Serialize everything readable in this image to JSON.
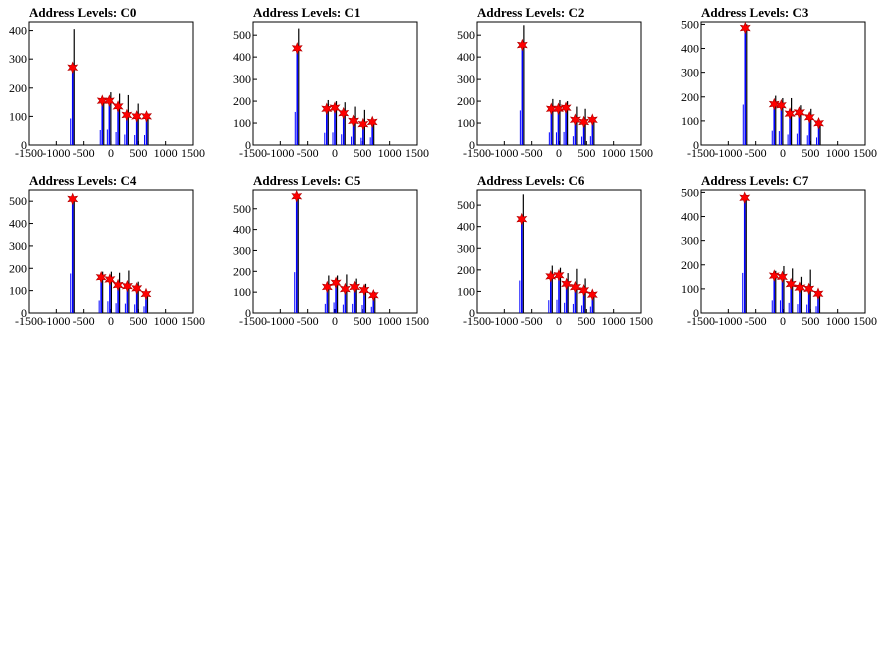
{
  "colors": {
    "histogram": "#0000ff",
    "peak_marker": "#ff0000",
    "frame": "#000000",
    "spike": "#000000"
  },
  "chart_data": [
    {
      "type": "histogram",
      "title": "Address Levels: C0",
      "xlim": [
        -1500,
        1500
      ],
      "ylim": [
        0,
        430
      ],
      "xticks": [
        "-1500",
        "-1000",
        "-500",
        "0",
        "500",
        "1000",
        "1500"
      ],
      "yticks": [
        "0",
        "100",
        "200",
        "300",
        "400"
      ],
      "bins": [
        {
          "x": -700,
          "y": 265,
          "peak": 405
        },
        {
          "x": -160,
          "y": 150,
          "peak": 165
        },
        {
          "x": -30,
          "y": 155,
          "peak": 185
        },
        {
          "x": 130,
          "y": 130,
          "peak": 180
        },
        {
          "x": 290,
          "y": 105,
          "peak": 175
        },
        {
          "x": 470,
          "y": 100,
          "peak": 145
        },
        {
          "x": 650,
          "y": 100,
          "peak": 110
        }
      ],
      "peaks": [
        {
          "x": -700,
          "y": 270
        },
        {
          "x": -160,
          "y": 155
        },
        {
          "x": -30,
          "y": 155
        },
        {
          "x": 130,
          "y": 135
        },
        {
          "x": 290,
          "y": 105
        },
        {
          "x": 470,
          "y": 100
        },
        {
          "x": 650,
          "y": 100
        }
      ]
    },
    {
      "type": "histogram",
      "title": "Address Levels: C1",
      "xlim": [
        -1500,
        1500
      ],
      "ylim": [
        0,
        560
      ],
      "xticks": [
        "-1500",
        "-1000",
        "-500",
        "0",
        "500",
        "1000",
        "1500"
      ],
      "yticks": [
        "0",
        "100",
        "200",
        "300",
        "400",
        "500"
      ],
      "bins": [
        {
          "x": -690,
          "y": 430,
          "peak": 530
        },
        {
          "x": -150,
          "y": 160,
          "peak": 205
        },
        {
          "x": 0,
          "y": 165,
          "peak": 200
        },
        {
          "x": 160,
          "y": 140,
          "peak": 195
        },
        {
          "x": 340,
          "y": 110,
          "peak": 175
        },
        {
          "x": 510,
          "y": 95,
          "peak": 160
        },
        {
          "x": 680,
          "y": 100,
          "peak": 110
        }
      ],
      "peaks": [
        {
          "x": -690,
          "y": 440
        },
        {
          "x": -150,
          "y": 165
        },
        {
          "x": 0,
          "y": 170
        },
        {
          "x": 160,
          "y": 145
        },
        {
          "x": 340,
          "y": 110
        },
        {
          "x": 510,
          "y": 95
        },
        {
          "x": 680,
          "y": 105
        }
      ]
    },
    {
      "type": "histogram",
      "title": "Address Levels: C2",
      "xlim": [
        -1500,
        1500
      ],
      "ylim": [
        0,
        560
      ],
      "xticks": [
        "-1500",
        "-1000",
        "-500",
        "0",
        "500",
        "1000",
        "1500"
      ],
      "yticks": [
        "0",
        "100",
        "200",
        "300",
        "400",
        "500"
      ],
      "bins": [
        {
          "x": -670,
          "y": 450,
          "peak": 545
        },
        {
          "x": -140,
          "y": 165,
          "peak": 210
        },
        {
          "x": -10,
          "y": 165,
          "peak": 205
        },
        {
          "x": 130,
          "y": 170,
          "peak": 200
        },
        {
          "x": 300,
          "y": 115,
          "peak": 175
        },
        {
          "x": 450,
          "y": 110,
          "peak": 165
        },
        {
          "x": 610,
          "y": 115,
          "peak": 120
        }
      ],
      "peaks": [
        {
          "x": -670,
          "y": 455
        },
        {
          "x": -140,
          "y": 165
        },
        {
          "x": -10,
          "y": 165
        },
        {
          "x": 130,
          "y": 170
        },
        {
          "x": 300,
          "y": 115
        },
        {
          "x": 450,
          "y": 105
        },
        {
          "x": 610,
          "y": 115
        }
      ]
    },
    {
      "type": "histogram",
      "title": "Address Levels: C3",
      "xlim": [
        -1500,
        1500
      ],
      "ylim": [
        0,
        510
      ],
      "xticks": [
        "-1500",
        "-1000",
        "-500",
        "0",
        "500",
        "1000",
        "1500"
      ],
      "yticks": [
        "0",
        "100",
        "200",
        "300",
        "400",
        "500"
      ],
      "bins": [
        {
          "x": -690,
          "y": 480,
          "peak": 500
        },
        {
          "x": -160,
          "y": 170,
          "peak": 205
        },
        {
          "x": -30,
          "y": 165,
          "peak": 195
        },
        {
          "x": 130,
          "y": 125,
          "peak": 195
        },
        {
          "x": 300,
          "y": 135,
          "peak": 165
        },
        {
          "x": 480,
          "y": 115,
          "peak": 150
        },
        {
          "x": 650,
          "y": 90,
          "peak": 100
        }
      ],
      "peaks": [
        {
          "x": -690,
          "y": 485
        },
        {
          "x": -160,
          "y": 170
        },
        {
          "x": -30,
          "y": 165
        },
        {
          "x": 130,
          "y": 130
        },
        {
          "x": 300,
          "y": 135
        },
        {
          "x": 480,
          "y": 115
        },
        {
          "x": 650,
          "y": 90
        }
      ]
    },
    {
      "type": "histogram",
      "title": "Address Levels: C4",
      "xlim": [
        -1500,
        1500
      ],
      "ylim": [
        0,
        550
      ],
      "xticks": [
        "-1500",
        "-1000",
        "-500",
        "0",
        "500",
        "1000",
        "1500"
      ],
      "yticks": [
        "0",
        "100",
        "200",
        "300",
        "400",
        "500"
      ],
      "bins": [
        {
          "x": -700,
          "y": 505,
          "peak": 520
        },
        {
          "x": -180,
          "y": 160,
          "peak": 185
        },
        {
          "x": -20,
          "y": 150,
          "peak": 185
        },
        {
          "x": 130,
          "y": 125,
          "peak": 180
        },
        {
          "x": 300,
          "y": 120,
          "peak": 190
        },
        {
          "x": 470,
          "y": 110,
          "peak": 140
        },
        {
          "x": 640,
          "y": 85,
          "peak": 95
        }
      ],
      "peaks": [
        {
          "x": -700,
          "y": 510
        },
        {
          "x": -180,
          "y": 160
        },
        {
          "x": -20,
          "y": 150
        },
        {
          "x": 130,
          "y": 125
        },
        {
          "x": 300,
          "y": 120
        },
        {
          "x": 470,
          "y": 110
        },
        {
          "x": 640,
          "y": 85
        }
      ]
    },
    {
      "type": "histogram",
      "title": "Address Levels: C5",
      "xlim": [
        -1500,
        1500
      ],
      "ylim": [
        0,
        590
      ],
      "xticks": [
        "-1500",
        "-1000",
        "-500",
        "0",
        "500",
        "1000",
        "1500"
      ],
      "yticks": [
        "0",
        "100",
        "200",
        "300",
        "400",
        "500"
      ],
      "bins": [
        {
          "x": -700,
          "y": 560,
          "peak": 565
        },
        {
          "x": -140,
          "y": 125,
          "peak": 180
        },
        {
          "x": 20,
          "y": 145,
          "peak": 180
        },
        {
          "x": 190,
          "y": 115,
          "peak": 185
        },
        {
          "x": 360,
          "y": 125,
          "peak": 165
        },
        {
          "x": 530,
          "y": 110,
          "peak": 140
        },
        {
          "x": 700,
          "y": 85,
          "peak": 100
        }
      ],
      "peaks": [
        {
          "x": -700,
          "y": 560
        },
        {
          "x": -140,
          "y": 125
        },
        {
          "x": 20,
          "y": 145
        },
        {
          "x": 190,
          "y": 115
        },
        {
          "x": 360,
          "y": 125
        },
        {
          "x": 530,
          "y": 110
        },
        {
          "x": 700,
          "y": 85
        }
      ]
    },
    {
      "type": "histogram",
      "title": "Address Levels: C6",
      "xlim": [
        -1500,
        1500
      ],
      "ylim": [
        0,
        570
      ],
      "xticks": [
        "-1500",
        "-1000",
        "-500",
        "0",
        "500",
        "1000",
        "1500"
      ],
      "yticks": [
        "0",
        "100",
        "200",
        "300",
        "400",
        "500"
      ],
      "bins": [
        {
          "x": -680,
          "y": 430,
          "peak": 550
        },
        {
          "x": -150,
          "y": 170,
          "peak": 220
        },
        {
          "x": 0,
          "y": 175,
          "peak": 210
        },
        {
          "x": 140,
          "y": 135,
          "peak": 185
        },
        {
          "x": 300,
          "y": 120,
          "peak": 205
        },
        {
          "x": 450,
          "y": 100,
          "peak": 160
        },
        {
          "x": 610,
          "y": 85,
          "peak": 95
        }
      ],
      "peaks": [
        {
          "x": -680,
          "y": 435
        },
        {
          "x": -150,
          "y": 170
        },
        {
          "x": 0,
          "y": 175
        },
        {
          "x": 140,
          "y": 135
        },
        {
          "x": 300,
          "y": 120
        },
        {
          "x": 450,
          "y": 105
        },
        {
          "x": 610,
          "y": 85
        }
      ]
    },
    {
      "type": "histogram",
      "title": "Address Levels: C7",
      "xlim": [
        -1500,
        1500
      ],
      "ylim": [
        0,
        510
      ],
      "xticks": [
        "-1500",
        "-1000",
        "-500",
        "0",
        "500",
        "1000",
        "1500"
      ],
      "yticks": [
        "0",
        "100",
        "200",
        "300",
        "400",
        "500"
      ],
      "bins": [
        {
          "x": -700,
          "y": 475,
          "peak": 490
        },
        {
          "x": -160,
          "y": 150,
          "peak": 175
        },
        {
          "x": -10,
          "y": 150,
          "peak": 195
        },
        {
          "x": 150,
          "y": 120,
          "peak": 185
        },
        {
          "x": 310,
          "y": 105,
          "peak": 150
        },
        {
          "x": 470,
          "y": 100,
          "peak": 180
        },
        {
          "x": 640,
          "y": 80,
          "peak": 90
        }
      ],
      "peaks": [
        {
          "x": -700,
          "y": 478
        },
        {
          "x": -160,
          "y": 155
        },
        {
          "x": -10,
          "y": 150
        },
        {
          "x": 150,
          "y": 120
        },
        {
          "x": 310,
          "y": 105
        },
        {
          "x": 470,
          "y": 100
        },
        {
          "x": 640,
          "y": 80
        }
      ]
    }
  ]
}
